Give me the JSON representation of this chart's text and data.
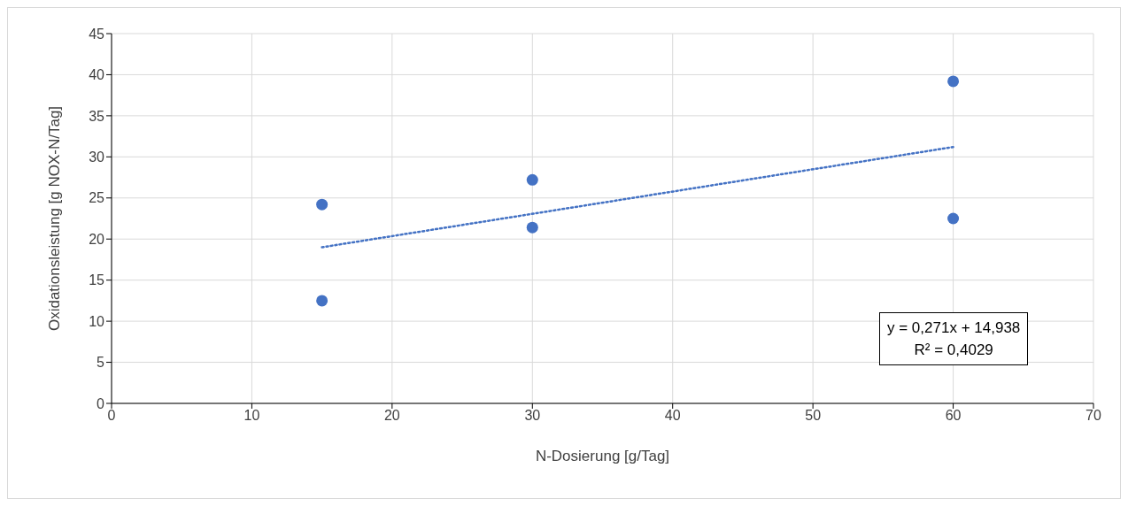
{
  "chart_data": {
    "type": "scatter",
    "xlabel": "N-Dosierung [g/Tag]",
    "ylabel": "Oxidationsleistung [g NOX-N/Tag]",
    "series": [
      {
        "color": "#4472c4",
        "marker": "circle",
        "x": [
          15,
          15,
          30,
          30,
          60,
          60
        ],
        "values": [
          24.2,
          12.5,
          27.2,
          21.4,
          39.2,
          22.5
        ]
      },
      {
        "type": "line",
        "color": "#4472c4",
        "line_style": "dotted",
        "x": [
          15,
          60
        ],
        "values": [
          19.0,
          31.2
        ]
      }
    ],
    "xlim": [
      0,
      70
    ],
    "xticks": [
      0,
      10,
      20,
      30,
      40,
      50,
      60,
      70
    ],
    "ylim": [
      0,
      45
    ],
    "yticks": [
      0,
      5,
      10,
      15,
      20,
      25,
      30,
      35,
      40,
      45
    ],
    "grid": true,
    "annotations": [
      "y = 0,271x + 14,938",
      "R² = 0,4029"
    ]
  }
}
